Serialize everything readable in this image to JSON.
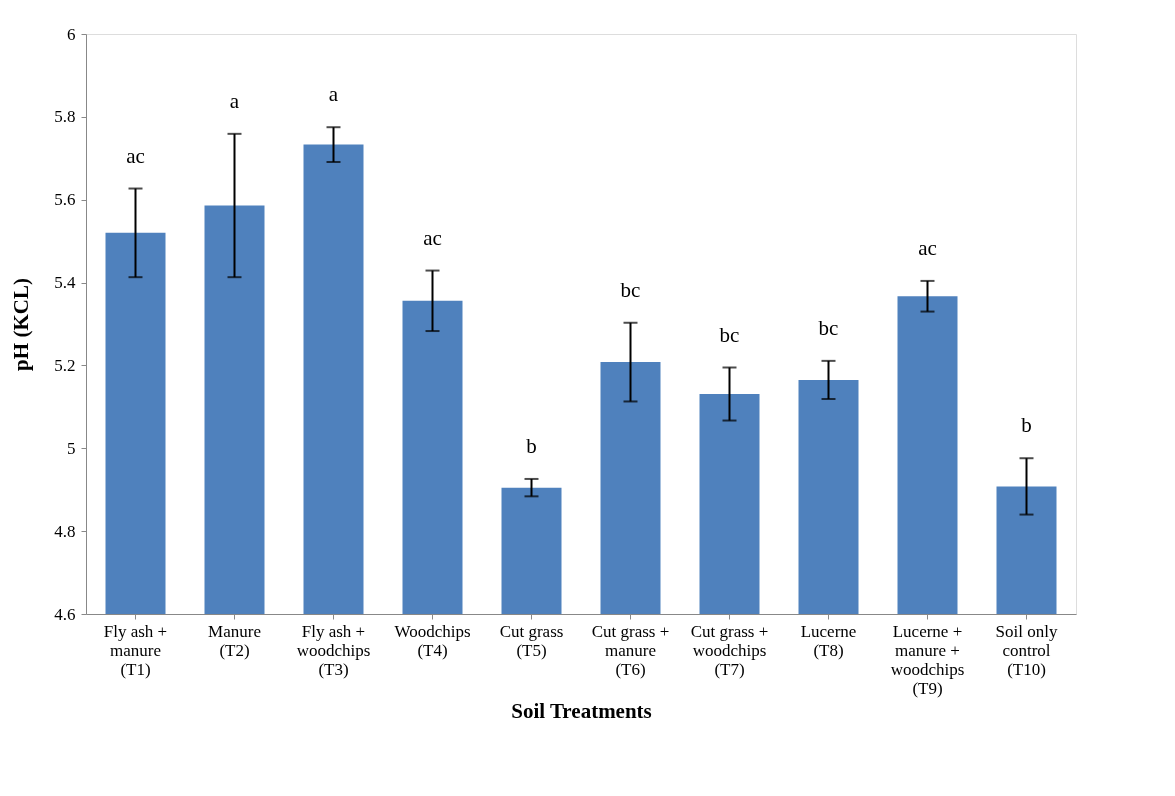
{
  "chart_data": {
    "type": "bar",
    "xlabel": "Soil Treatments",
    "ylabel": "pH (KCL)",
    "categories": [
      "Fly ash + manure (T1)",
      "Manure (T2)",
      "Fly ash + woodchips (T3)",
      "Woodchips (T4)",
      "Cut grass (T5)",
      "Cut grass + manure (T6)",
      "Cut grass + woodchips (T7)",
      "Lucerne (T8)",
      "Lucerne + manure + woodchips (T9)",
      "Soil only control (T10)"
    ],
    "values": [
      5.52,
      5.586,
      5.733,
      5.356,
      4.905,
      5.208,
      5.131,
      5.165,
      5.367,
      4.908
    ],
    "errors": [
      0.107,
      0.173,
      0.042,
      0.073,
      0.021,
      0.095,
      0.064,
      0.046,
      0.037,
      0.068
    ],
    "color": "#4f81bd",
    "ylim": [
      4.6,
      6
    ],
    "yticks": [
      4.6,
      4.8,
      5,
      5.2,
      5.4,
      5.6,
      5.8,
      6
    ],
    "grid": false,
    "annotations": [
      "ac",
      "a",
      "a",
      "ac",
      "b",
      "bc",
      "bc",
      "bc",
      "ac",
      "b"
    ]
  }
}
